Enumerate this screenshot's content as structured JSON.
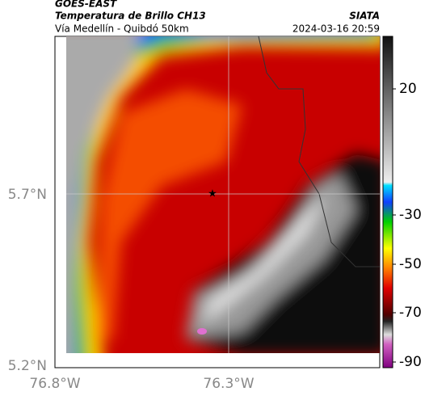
{
  "header": {
    "source": "GOES-EAST",
    "title": "Temperatura de Brillo CH13",
    "subtitle": "Vía Medellín - Quibdó 50km",
    "agency": "SIATA",
    "datetime": "2024-03-16 20:59"
  },
  "map": {
    "lat_labels": [
      "5.7°N",
      "5.2°N"
    ],
    "lon_labels": [
      "76.8°W",
      "76.3°W"
    ]
  },
  "colorbar": {
    "labels": [
      "20",
      "-30",
      "-50",
      "-70",
      "-90"
    ]
  }
}
